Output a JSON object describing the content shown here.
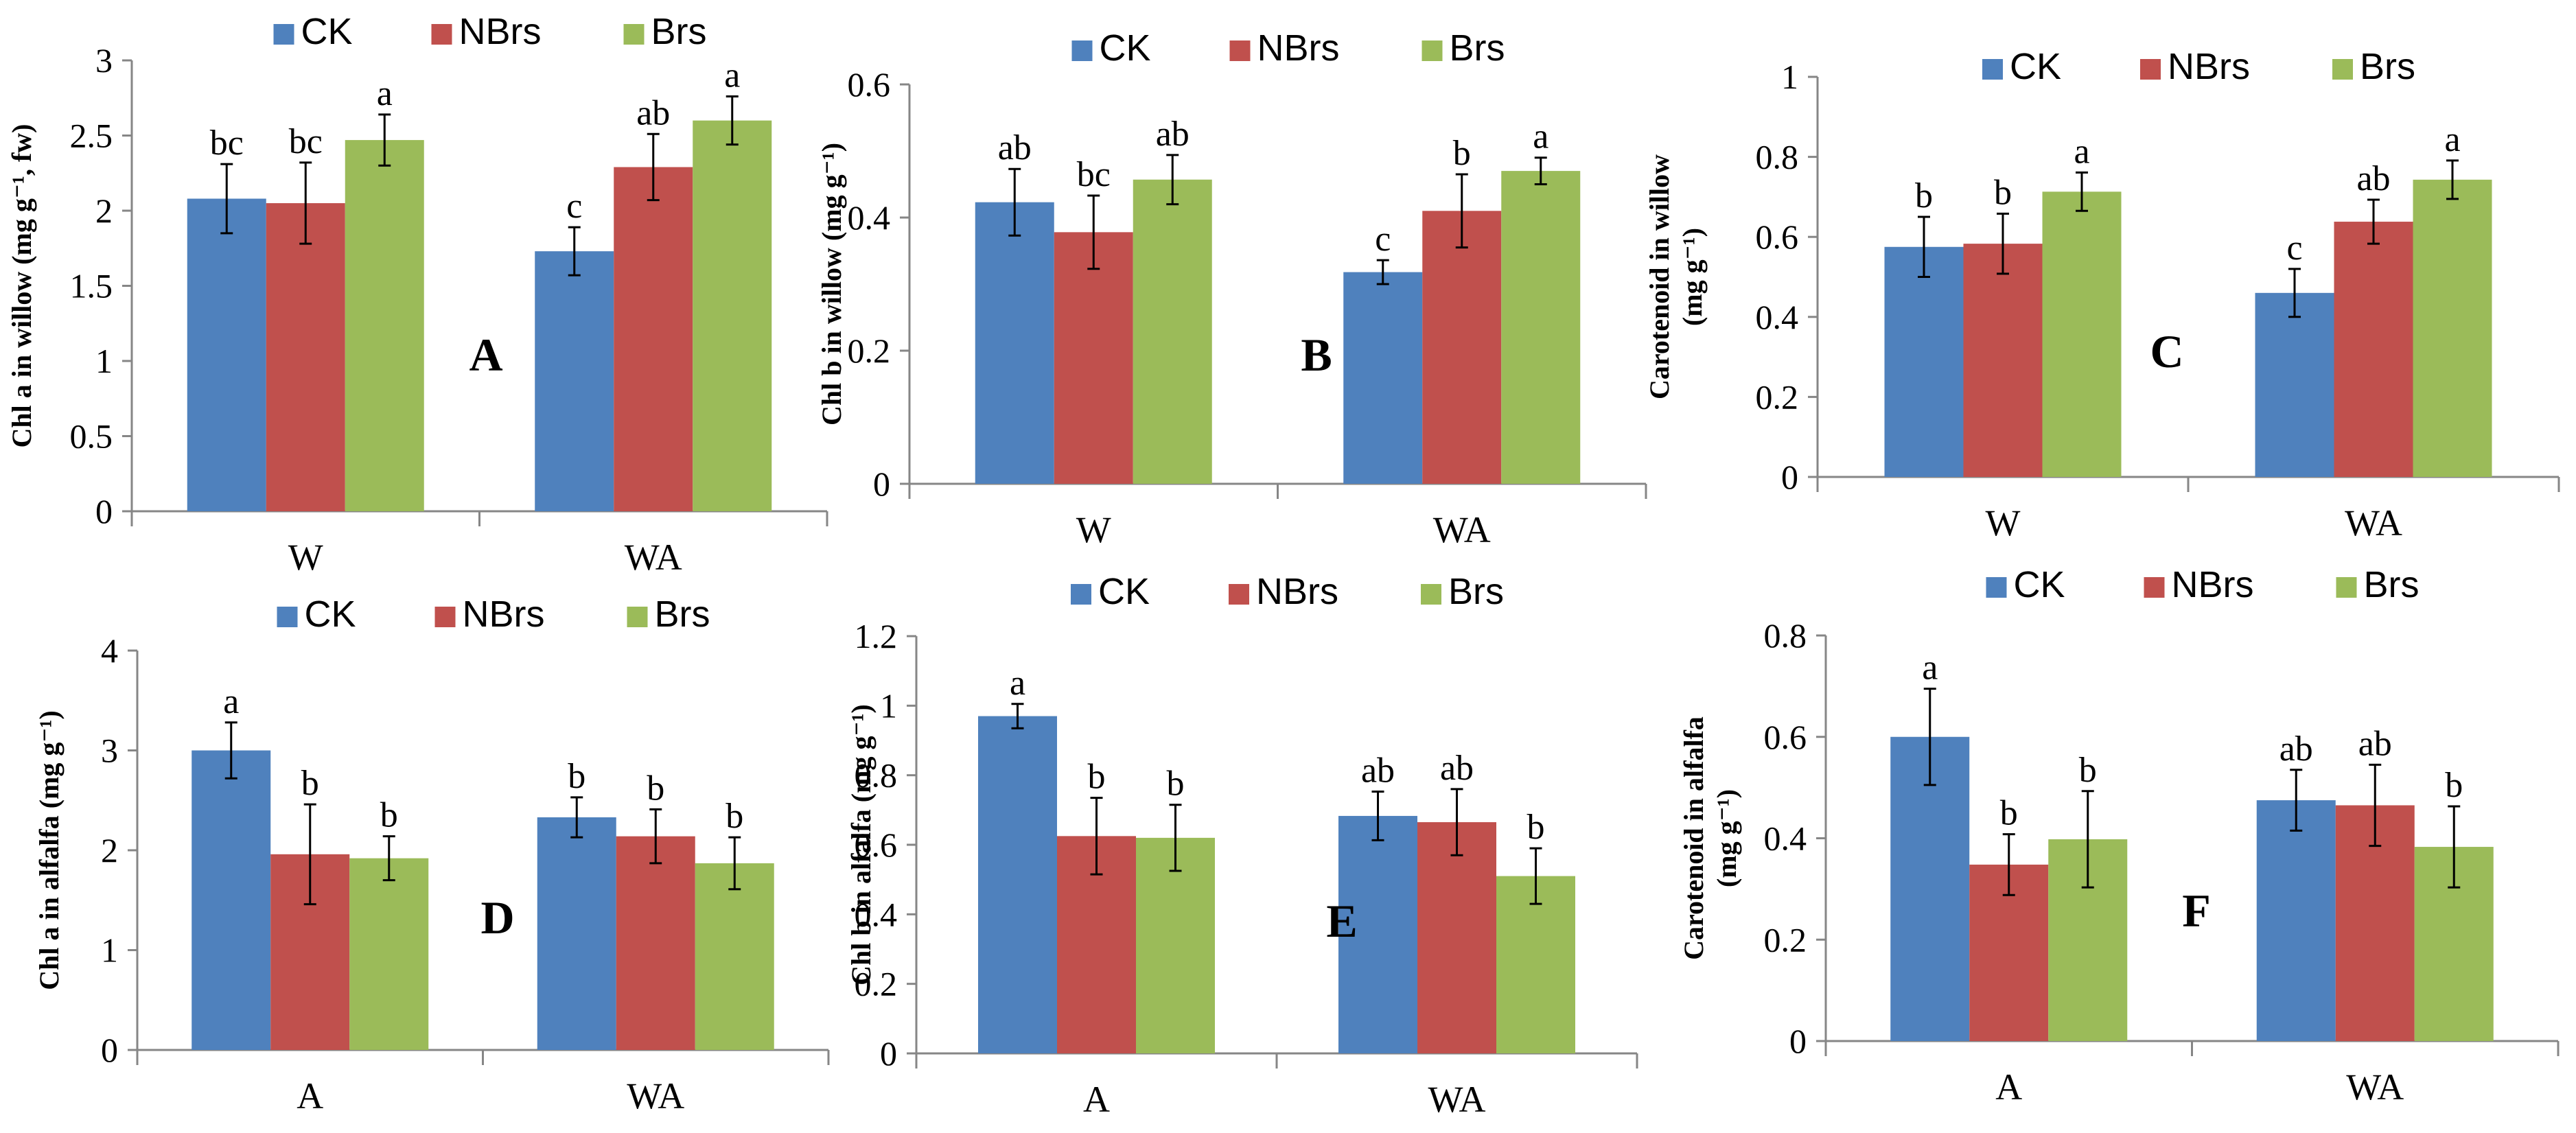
{
  "chart_data": [
    {
      "type": "bar",
      "panel": "A",
      "ylabel_lines": [
        "Chl a in willow (mg g⁻¹, fw)"
      ],
      "categories": [
        "W",
        "WA"
      ],
      "ylim": [
        0,
        3
      ],
      "yticks": [
        0,
        0.5,
        1,
        1.5,
        2,
        2.5,
        3
      ],
      "ytick_labels": [
        "0",
        "0.5",
        "1",
        "1.5",
        "2",
        "2.5",
        "3"
      ],
      "series": [
        {
          "name": "CK",
          "color": "#4F81BD",
          "values": [
            2.08,
            1.73
          ],
          "errors": [
            0.23,
            0.16
          ],
          "letters": [
            "bc",
            "c"
          ]
        },
        {
          "name": "NBrs",
          "color": "#C0504D",
          "values": [
            2.05,
            2.29
          ],
          "errors": [
            0.27,
            0.22
          ],
          "letters": [
            "bc",
            "ab"
          ]
        },
        {
          "name": "Brs",
          "color": "#9BBB59",
          "values": [
            2.47,
            2.6
          ],
          "errors": [
            0.17,
            0.16
          ],
          "letters": [
            "a",
            "a"
          ]
        }
      ],
      "legend": "top"
    },
    {
      "type": "bar",
      "panel": "B",
      "ylabel_lines": [
        "Chl b in willow (mg g⁻¹)"
      ],
      "categories": [
        "W",
        "WA"
      ],
      "ylim": [
        0,
        0.6
      ],
      "yticks": [
        0,
        0.2,
        0.4,
        0.6
      ],
      "ytick_labels": [
        "0",
        "0.2",
        "0.4",
        "0.6"
      ],
      "series": [
        {
          "name": "CK",
          "color": "#4F81BD",
          "values": [
            0.423,
            0.318
          ],
          "errors": [
            0.05,
            0.018
          ],
          "letters": [
            "ab",
            "c"
          ]
        },
        {
          "name": "NBrs",
          "color": "#C0504D",
          "values": [
            0.378,
            0.41
          ],
          "errors": [
            0.055,
            0.055
          ],
          "letters": [
            "bc",
            "b"
          ]
        },
        {
          "name": "Brs",
          "color": "#9BBB59",
          "values": [
            0.457,
            0.47
          ],
          "errors": [
            0.037,
            0.02
          ],
          "letters": [
            "ab",
            "a"
          ]
        }
      ],
      "legend": "top"
    },
    {
      "type": "bar",
      "panel": "C",
      "ylabel_lines": [
        "Carotenoid  in willow",
        "(mg g⁻¹)"
      ],
      "categories": [
        "W",
        "WA"
      ],
      "ylim": [
        0,
        1
      ],
      "yticks": [
        0,
        0.2,
        0.4,
        0.6,
        0.8,
        1
      ],
      "ytick_labels": [
        "0",
        "0.2",
        "0.4",
        "0.6",
        "0.8",
        "1"
      ],
      "series": [
        {
          "name": "CK",
          "color": "#4F81BD",
          "values": [
            0.575,
            0.46
          ],
          "errors": [
            0.075,
            0.06
          ],
          "letters": [
            "b",
            "c"
          ]
        },
        {
          "name": "NBrs",
          "color": "#C0504D",
          "values": [
            0.583,
            0.638
          ],
          "errors": [
            0.075,
            0.055
          ],
          "letters": [
            "b",
            "ab"
          ]
        },
        {
          "name": "Brs",
          "color": "#9BBB59",
          "values": [
            0.713,
            0.743
          ],
          "errors": [
            0.048,
            0.048
          ],
          "letters": [
            "a",
            "a"
          ]
        }
      ],
      "legend": "top"
    },
    {
      "type": "bar",
      "panel": "D",
      "ylabel_lines": [
        "Chl a in alfalfa (mg g⁻¹)"
      ],
      "categories": [
        "A",
        "WA"
      ],
      "ylim": [
        0,
        4
      ],
      "yticks": [
        0,
        1,
        2,
        3,
        4
      ],
      "ytick_labels": [
        "0",
        "1",
        "2",
        "3",
        "4"
      ],
      "series": [
        {
          "name": "CK",
          "color": "#4F81BD",
          "values": [
            3.0,
            2.33
          ],
          "errors": [
            0.28,
            0.2
          ],
          "letters": [
            "a",
            "b"
          ]
        },
        {
          "name": "NBrs",
          "color": "#C0504D",
          "values": [
            1.96,
            2.14
          ],
          "errors": [
            0.5,
            0.27
          ],
          "letters": [
            "b",
            "b"
          ]
        },
        {
          "name": "Brs",
          "color": "#9BBB59",
          "values": [
            1.92,
            1.87
          ],
          "errors": [
            0.22,
            0.26
          ],
          "letters": [
            "b",
            "b"
          ]
        }
      ],
      "legend": "top"
    },
    {
      "type": "bar",
      "panel": "E",
      "ylabel_lines": [
        "Chl b in alfalfa (mg g⁻¹)"
      ],
      "categories": [
        "A",
        "WA"
      ],
      "ylim": [
        0,
        1.2
      ],
      "yticks": [
        0,
        0.2,
        0.4,
        0.6,
        0.8,
        1,
        1.2
      ],
      "ytick_labels": [
        "0",
        "0.2",
        "0.4",
        "0.6",
        "0.8",
        "1",
        "1.2"
      ],
      "series": [
        {
          "name": "CK",
          "color": "#4F81BD",
          "values": [
            0.97,
            0.683
          ],
          "errors": [
            0.035,
            0.07
          ],
          "letters": [
            "a",
            "ab"
          ]
        },
        {
          "name": "NBrs",
          "color": "#C0504D",
          "values": [
            0.625,
            0.665
          ],
          "errors": [
            0.11,
            0.095
          ],
          "letters": [
            "b",
            "ab"
          ]
        },
        {
          "name": "Brs",
          "color": "#9BBB59",
          "values": [
            0.62,
            0.51
          ],
          "errors": [
            0.095,
            0.08
          ],
          "letters": [
            "b",
            "b"
          ]
        }
      ],
      "legend": "top"
    },
    {
      "type": "bar",
      "panel": "F",
      "ylabel_lines": [
        "Carotenoid  in alfalfa",
        "(mg g⁻¹)"
      ],
      "categories": [
        "A",
        "WA"
      ],
      "ylim": [
        0,
        0.8
      ],
      "yticks": [
        0,
        0.2,
        0.4,
        0.6,
        0.8
      ],
      "ytick_labels": [
        "0",
        "0.2",
        "0.4",
        "0.6",
        "0.8"
      ],
      "series": [
        {
          "name": "CK",
          "color": "#4F81BD",
          "values": [
            0.6,
            0.475
          ],
          "errors": [
            0.095,
            0.06
          ],
          "letters": [
            "a",
            "ab"
          ]
        },
        {
          "name": "NBrs",
          "color": "#C0504D",
          "values": [
            0.348,
            0.465
          ],
          "errors": [
            0.06,
            0.08
          ],
          "letters": [
            "b",
            "ab"
          ]
        },
        {
          "name": "Brs",
          "color": "#9BBB59",
          "values": [
            0.398,
            0.383
          ],
          "errors": [
            0.095,
            0.08
          ],
          "letters": [
            "b",
            "b"
          ]
        }
      ],
      "legend": "top"
    }
  ]
}
